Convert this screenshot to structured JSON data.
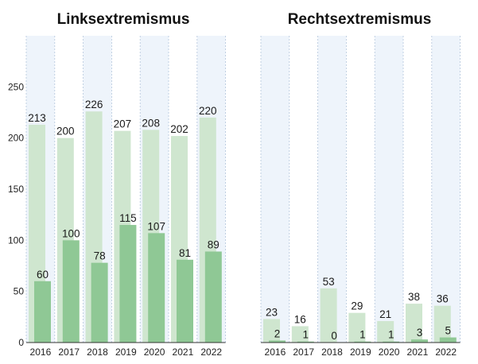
{
  "chart_data": [
    {
      "type": "bar",
      "title": "Linksextremismus",
      "categories": [
        "2016",
        "2017",
        "2018",
        "2019",
        "2020",
        "2021",
        "2022"
      ],
      "series": [
        {
          "values": [
            213,
            200,
            226,
            207,
            208,
            202,
            220
          ]
        },
        {
          "values": [
            60,
            100,
            78,
            115,
            107,
            81,
            89
          ]
        }
      ],
      "ylim": [
        0,
        300
      ],
      "yticks": [
        0,
        50,
        100,
        150,
        200,
        250
      ],
      "grid": "vertical dashed column separators, alternating light blue column bands"
    },
    {
      "type": "bar",
      "title": "Rechtsextremismus",
      "categories": [
        "2016",
        "2017",
        "2018",
        "2019",
        "2020",
        "2021",
        "2022"
      ],
      "series": [
        {
          "values": [
            23,
            16,
            53,
            29,
            21,
            38,
            36
          ]
        },
        {
          "values": [
            2,
            1,
            0,
            1,
            1,
            3,
            5
          ]
        }
      ],
      "ylim": [
        0,
        300
      ],
      "grid": "vertical dashed column separators, alternating light blue column bands"
    }
  ],
  "colors": {
    "light_bar": "#cfe6cf",
    "dark_bar": "#8fc895",
    "band": "#eef4fb",
    "separator": "#b4c6dc",
    "axis": "#333333"
  }
}
